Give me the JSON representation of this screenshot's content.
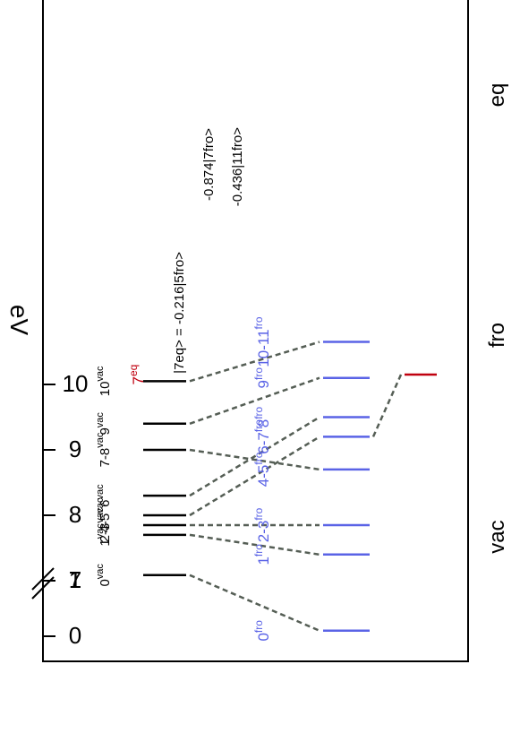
{
  "chart_data": {
    "type": "level-diagram",
    "ylabel": "eV",
    "y_ticks": [
      {
        "value": 0,
        "label": "0"
      },
      {
        "value": 1,
        "label": "1"
      },
      {
        "value": 7,
        "label": "7"
      },
      {
        "value": 8,
        "label": "8"
      },
      {
        "value": 9,
        "label": "9"
      },
      {
        "value": 10,
        "label": "10"
      }
    ],
    "axis_break_between": [
      1,
      7
    ],
    "columns": [
      {
        "key": "vac",
        "label": "vac"
      },
      {
        "key": "fro",
        "label": "fro"
      },
      {
        "key": "eq",
        "label": "eq"
      }
    ],
    "levels": {
      "vac": [
        {
          "id": "0",
          "energy": 1.1,
          "label": "0",
          "sup": "vac"
        },
        {
          "id": "1",
          "energy": 7.7,
          "label": "1",
          "sup": "vac"
        },
        {
          "id": "2-3",
          "energy": 7.85,
          "label": "2-3",
          "sup": "vac"
        },
        {
          "id": "4-5",
          "energy": 8.0,
          "label": "4-5",
          "sup": "vac"
        },
        {
          "id": "6",
          "energy": 8.3,
          "label": "6",
          "sup": "vac"
        },
        {
          "id": "7-8",
          "energy": 9.0,
          "label": "7-8",
          "sup": "vac"
        },
        {
          "id": "9",
          "energy": 9.4,
          "label": "9",
          "sup": "vac"
        },
        {
          "id": "10",
          "energy": 10.05,
          "label": "10",
          "sup": "vac"
        }
      ],
      "fro": [
        {
          "id": "0",
          "energy": 0.1,
          "label": "0",
          "sup": "fro"
        },
        {
          "id": "1",
          "energy": 7.4,
          "label": "1",
          "sup": "fro"
        },
        {
          "id": "2-3",
          "energy": 7.85,
          "label": "2-3",
          "sup": "fro"
        },
        {
          "id": "4-5",
          "energy": 8.7,
          "label": "4-5",
          "sup": "fro"
        },
        {
          "id": "6-7",
          "energy": 9.2,
          "label": "6-7",
          "sup": "fro"
        },
        {
          "id": "8",
          "energy": 9.5,
          "label": "8",
          "sup": "fro"
        },
        {
          "id": "9",
          "energy": 10.1,
          "label": "9",
          "sup": "fro"
        },
        {
          "id": "10-11",
          "energy": 10.65,
          "label": "10-11",
          "sup": "fro"
        }
      ],
      "eq": [
        {
          "id": "7",
          "energy": 10.15,
          "label": "7",
          "sup": "eq",
          "color": "#c0000f"
        }
      ]
    },
    "correlations": [
      {
        "from": [
          "vac",
          "0"
        ],
        "to": [
          "fro",
          "0"
        ]
      },
      {
        "from": [
          "vac",
          "1"
        ],
        "to": [
          "fro",
          "1"
        ]
      },
      {
        "from": [
          "vac",
          "2-3"
        ],
        "to": [
          "fro",
          "2-3"
        ]
      },
      {
        "from": [
          "vac",
          "4-5"
        ],
        "to": [
          "fro",
          "6-7"
        ]
      },
      {
        "from": [
          "vac",
          "6"
        ],
        "to": [
          "fro",
          "8"
        ]
      },
      {
        "from": [
          "vac",
          "7-8"
        ],
        "to": [
          "fro",
          "4-5"
        ]
      },
      {
        "from": [
          "vac",
          "9"
        ],
        "to": [
          "fro",
          "9"
        ]
      },
      {
        "from": [
          "vac",
          "10"
        ],
        "to": [
          "fro",
          "10-11"
        ]
      },
      {
        "from": [
          "fro",
          "6-7"
        ],
        "to": [
          "eq",
          "7"
        ]
      }
    ],
    "annotations": [
      "|7eq> = -0.216|5fro>",
      "-0.874|7fro>",
      "-0.436|11fro>"
    ]
  },
  "colors": {
    "vac_level": "#000000",
    "fro_level": "#5a63e6",
    "fro_label": "#5a63e6",
    "eq_level": "#c0000f",
    "connector": "#555e55",
    "axis": "#000000"
  }
}
